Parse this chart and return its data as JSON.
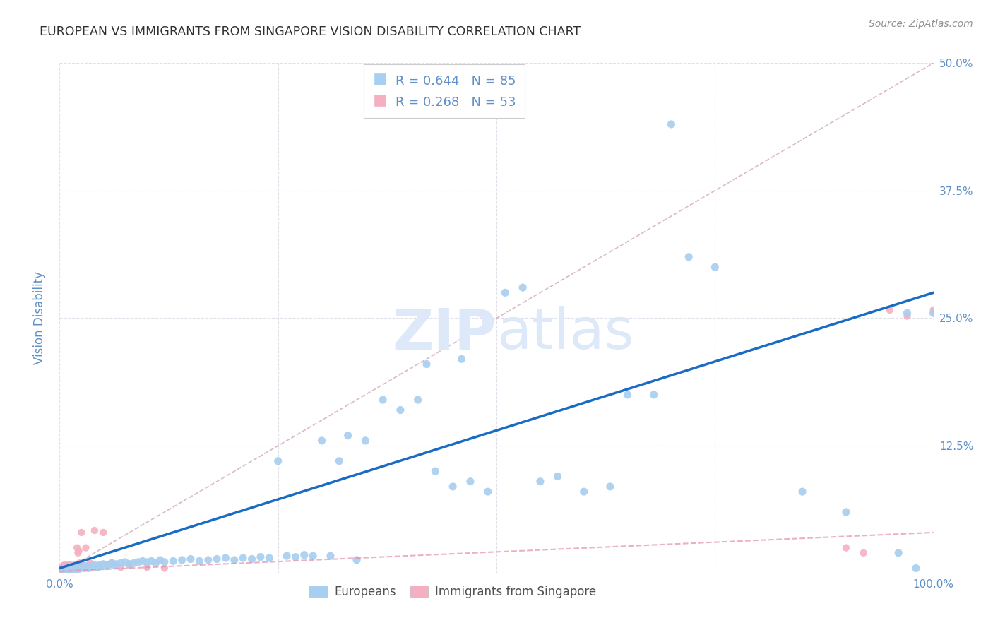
{
  "title": "EUROPEAN VS IMMIGRANTS FROM SINGAPORE VISION DISABILITY CORRELATION CHART",
  "source": "Source: ZipAtlas.com",
  "ylabel": "Vision Disability",
  "xlim": [
    0,
    1.0
  ],
  "ylim": [
    0,
    0.5
  ],
  "european_R": 0.644,
  "european_N": 85,
  "singapore_R": 0.268,
  "singapore_N": 53,
  "european_color": "#a8cef0",
  "singapore_color": "#f5afc0",
  "trendline_blue_color": "#1a6bc4",
  "trendline_pink_color": "#e090a8",
  "diagonal_color": "#d0a8b8",
  "background_color": "#ffffff",
  "grid_color": "#e0e0e8",
  "title_color": "#303030",
  "axis_tick_color": "#6090c8",
  "ylabel_color": "#6090c8",
  "watermark_color": "#dde8f8",
  "source_color": "#909090",
  "blue_trend": [
    0.0,
    0.005,
    1.0,
    0.275
  ],
  "pink_trend": [
    0.0,
    0.002,
    1.0,
    0.04
  ],
  "eu_x": [
    0.005,
    0.008,
    0.01,
    0.012,
    0.015,
    0.018,
    0.02,
    0.022,
    0.025,
    0.028,
    0.03,
    0.033,
    0.035,
    0.038,
    0.04,
    0.043,
    0.045,
    0.048,
    0.05,
    0.053,
    0.055,
    0.058,
    0.06,
    0.063,
    0.065,
    0.07,
    0.075,
    0.08,
    0.085,
    0.09,
    0.095,
    0.1,
    0.105,
    0.11,
    0.115,
    0.12,
    0.13,
    0.14,
    0.15,
    0.16,
    0.17,
    0.18,
    0.19,
    0.2,
    0.21,
    0.22,
    0.23,
    0.24,
    0.25,
    0.26,
    0.27,
    0.28,
    0.29,
    0.3,
    0.31,
    0.32,
    0.33,
    0.34,
    0.35,
    0.37,
    0.39,
    0.41,
    0.43,
    0.45,
    0.47,
    0.49,
    0.51,
    0.53,
    0.55,
    0.57,
    0.6,
    0.63,
    0.65,
    0.68,
    0.7,
    0.72,
    0.75,
    0.85,
    0.9,
    0.96,
    0.97,
    0.98,
    1.0,
    0.42,
    0.46
  ],
  "eu_y": [
    0.003,
    0.004,
    0.003,
    0.005,
    0.004,
    0.006,
    0.005,
    0.004,
    0.006,
    0.005,
    0.007,
    0.005,
    0.006,
    0.007,
    0.008,
    0.006,
    0.007,
    0.008,
    0.009,
    0.007,
    0.008,
    0.009,
    0.01,
    0.008,
    0.009,
    0.01,
    0.011,
    0.009,
    0.01,
    0.011,
    0.012,
    0.011,
    0.012,
    0.01,
    0.013,
    0.011,
    0.012,
    0.013,
    0.014,
    0.012,
    0.013,
    0.014,
    0.015,
    0.013,
    0.015,
    0.014,
    0.016,
    0.015,
    0.11,
    0.017,
    0.016,
    0.018,
    0.017,
    0.13,
    0.017,
    0.11,
    0.135,
    0.013,
    0.13,
    0.17,
    0.16,
    0.17,
    0.1,
    0.085,
    0.09,
    0.08,
    0.275,
    0.28,
    0.09,
    0.095,
    0.08,
    0.085,
    0.175,
    0.175,
    0.44,
    0.31,
    0.3,
    0.08,
    0.06,
    0.02,
    0.255,
    0.005,
    0.255,
    0.205,
    0.21
  ],
  "sg_x": [
    0.001,
    0.002,
    0.002,
    0.003,
    0.003,
    0.004,
    0.004,
    0.005,
    0.005,
    0.006,
    0.006,
    0.007,
    0.007,
    0.008,
    0.008,
    0.009,
    0.009,
    0.01,
    0.01,
    0.011,
    0.011,
    0.012,
    0.012,
    0.013,
    0.013,
    0.014,
    0.015,
    0.015,
    0.016,
    0.017,
    0.018,
    0.019,
    0.02,
    0.021,
    0.022,
    0.023,
    0.025,
    0.028,
    0.03,
    0.035,
    0.04,
    0.045,
    0.05,
    0.06,
    0.07,
    0.08,
    0.1,
    0.12,
    0.9,
    0.92,
    0.95,
    0.97,
    1.0
  ],
  "sg_y": [
    0.003,
    0.004,
    0.005,
    0.003,
    0.006,
    0.004,
    0.007,
    0.005,
    0.008,
    0.003,
    0.006,
    0.004,
    0.007,
    0.005,
    0.008,
    0.003,
    0.006,
    0.004,
    0.007,
    0.005,
    0.008,
    0.004,
    0.007,
    0.005,
    0.008,
    0.006,
    0.004,
    0.007,
    0.005,
    0.008,
    0.006,
    0.004,
    0.025,
    0.02,
    0.022,
    0.01,
    0.04,
    0.008,
    0.025,
    0.01,
    0.042,
    0.008,
    0.04,
    0.01,
    0.006,
    0.008,
    0.006,
    0.005,
    0.025,
    0.02,
    0.258,
    0.252,
    0.258
  ]
}
